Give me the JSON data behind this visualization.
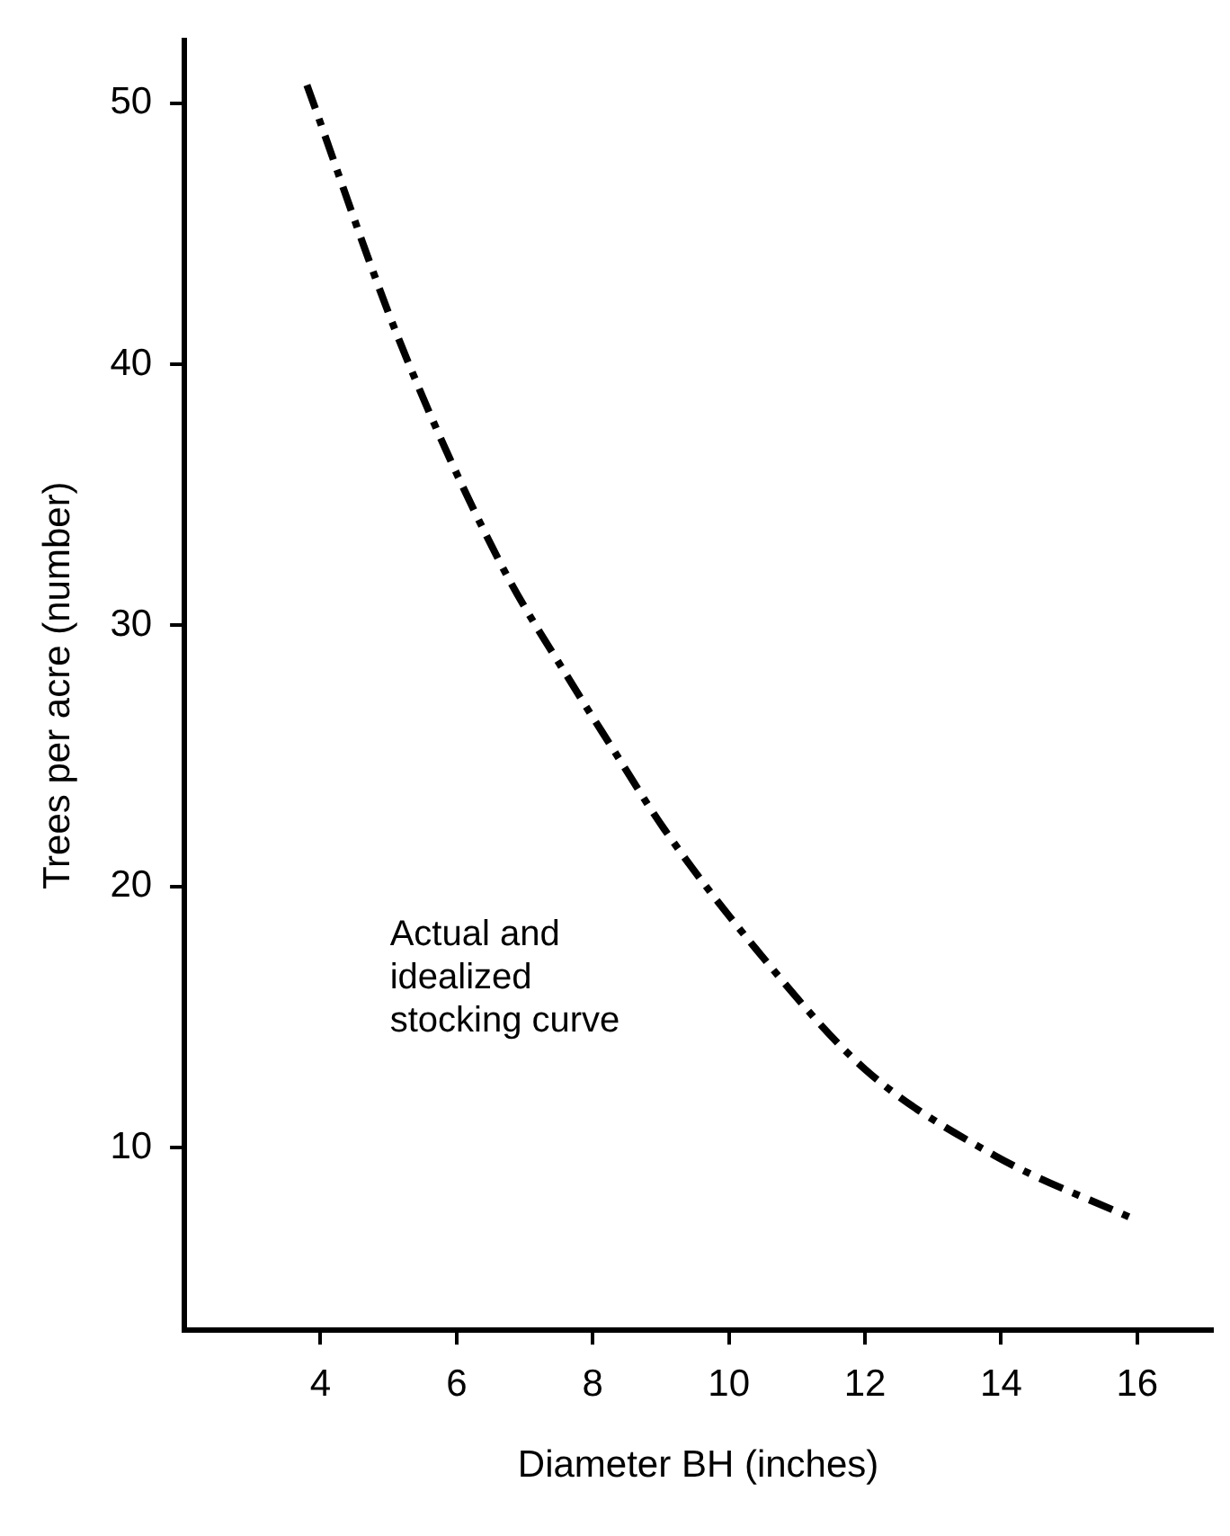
{
  "chart_data": {
    "type": "line",
    "xlabel": "Diameter BH (inches)",
    "ylabel": "Trees per acre (number)",
    "x": [
      3.8,
      5.16,
      6.62,
      7.78,
      8.24,
      9.05,
      10.4,
      12.0,
      13.9,
      16.0
    ],
    "series": [
      {
        "color": "#000000",
        "values": [
          50.7,
          40.9,
          32.5,
          27.4,
          25.5,
          22.2,
          17.6,
          13.0,
          9.7,
          7.2
        ]
      }
    ],
    "xlim": [
      2,
      17.1
    ],
    "xticks": [
      4,
      6,
      8,
      10,
      12,
      14,
      16
    ],
    "ylim": [
      3,
      52.4
    ],
    "yticks": [
      10,
      20,
      30,
      40,
      50
    ],
    "annotations": [
      "Actual and idealized stocking curve"
    ],
    "grid": false,
    "legend": false,
    "marker": "none",
    "line_style": "dashed"
  }
}
